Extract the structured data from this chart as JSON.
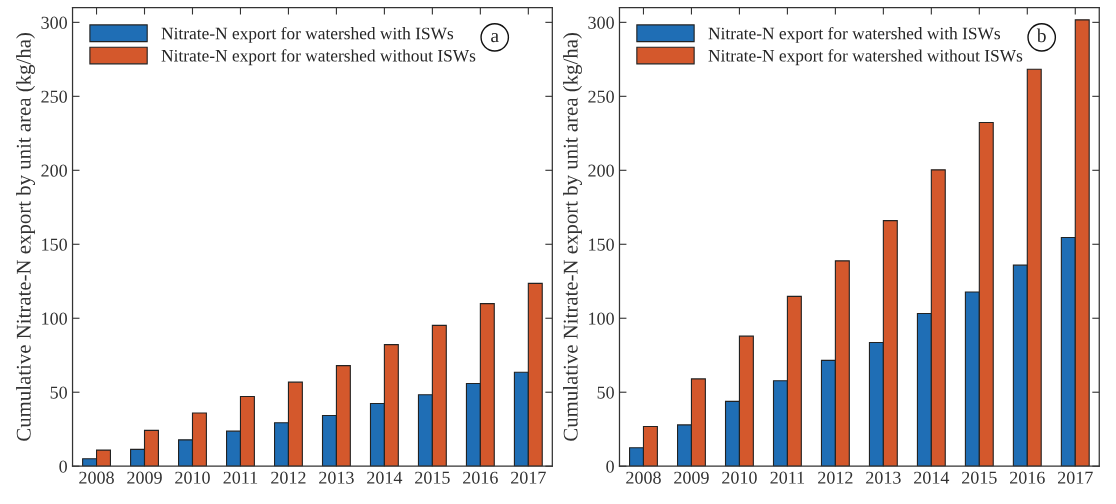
{
  "chart_data": [
    {
      "type": "bar",
      "ylabel": "Cumulative Nitrate-N export by unit area (kg/ha)",
      "annotations": [
        "a"
      ],
      "categories": [
        "2008",
        "2009",
        "2010",
        "2011",
        "2012",
        "2013",
        "2014",
        "2015",
        "2016",
        "2017"
      ],
      "series": [
        {
          "name": "Nitrate-N export for watershed with ISWs",
          "color": "#1f6eb5",
          "values": [
            5,
            11.4,
            17.8,
            23.7,
            29.4,
            34.3,
            42.4,
            48.3,
            55.9,
            63.5
          ]
        },
        {
          "name": "Nitrate-N export for watershed without ISWs",
          "color": "#d4582c",
          "values": [
            10.9,
            24.2,
            36,
            47.1,
            56.8,
            68,
            82.2,
            95.2,
            109.9,
            123.6
          ]
        }
      ],
      "ylim": [
        0,
        310
      ],
      "yticks": [
        0,
        50,
        100,
        150,
        200,
        250,
        300
      ],
      "grid": false,
      "legend": "top left"
    },
    {
      "type": "bar",
      "ylabel": "Cumulative Nitrate-N export by unit area (kg/ha)",
      "annotations": [
        "b"
      ],
      "categories": [
        "2008",
        "2009",
        "2010",
        "2011",
        "2012",
        "2013",
        "2014",
        "2015",
        "2016",
        "2017"
      ],
      "series": [
        {
          "name": "Nitrate-N export for watershed with ISWs",
          "color": "#1f6eb5",
          "values": [
            12.5,
            27.9,
            43.8,
            57.8,
            71.5,
            83.6,
            103.2,
            117.7,
            135.9,
            154.6
          ]
        },
        {
          "name": "Nitrate-N export for watershed without ISWs",
          "color": "#d4582c",
          "values": [
            26.8,
            59,
            87.9,
            114.8,
            138.8,
            166,
            200.3,
            232.3,
            268.3,
            301.7
          ]
        }
      ],
      "ylim": [
        0,
        310
      ],
      "yticks": [
        0,
        50,
        100,
        150,
        200,
        250,
        300
      ],
      "grid": false,
      "legend": "top left"
    }
  ]
}
